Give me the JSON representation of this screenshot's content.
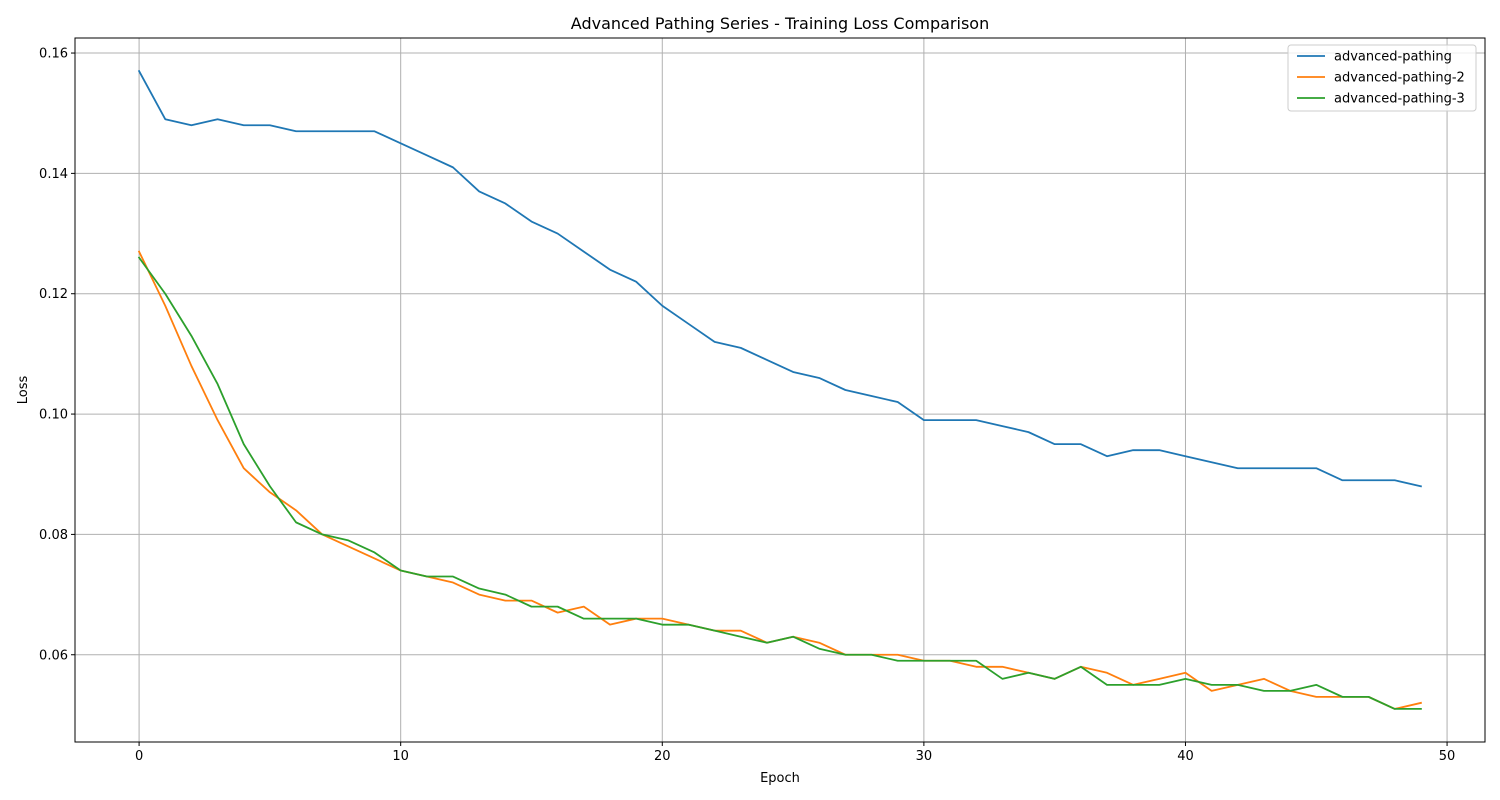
{
  "chart_data": {
    "type": "line",
    "title": "Advanced Pathing Series - Training Loss Comparison",
    "xlabel": "Epoch",
    "ylabel": "Loss",
    "xlim": [
      -2.45,
      51.45
    ],
    "ylim": [
      0.0455,
      0.1625
    ],
    "xticks": [
      0,
      10,
      20,
      30,
      40,
      50
    ],
    "xtick_labels": [
      "0",
      "10",
      "20",
      "30",
      "40",
      "50"
    ],
    "yticks": [
      0.06,
      0.08,
      0.1,
      0.12,
      0.14,
      0.16
    ],
    "ytick_labels": [
      "0.06",
      "0.08",
      "0.10",
      "0.12",
      "0.14",
      "0.16"
    ],
    "grid": true,
    "legend_position": "top-right",
    "x": [
      0,
      1,
      2,
      3,
      4,
      5,
      6,
      7,
      8,
      9,
      10,
      11,
      12,
      13,
      14,
      15,
      16,
      17,
      18,
      19,
      20,
      21,
      22,
      23,
      24,
      25,
      26,
      27,
      28,
      29,
      30,
      31,
      32,
      33,
      34,
      35,
      36,
      37,
      38,
      39,
      40,
      41,
      42,
      43,
      44,
      45,
      46,
      47,
      48,
      49
    ],
    "series": [
      {
        "name": "advanced-pathing",
        "color": "#1f77b4",
        "values": [
          0.157,
          0.149,
          0.148,
          0.149,
          0.148,
          0.148,
          0.147,
          0.147,
          0.147,
          0.147,
          0.145,
          0.143,
          0.141,
          0.137,
          0.135,
          0.132,
          0.13,
          0.127,
          0.124,
          0.122,
          0.118,
          0.115,
          0.112,
          0.111,
          0.109,
          0.107,
          0.106,
          0.104,
          0.103,
          0.102,
          0.099,
          0.099,
          0.099,
          0.098,
          0.097,
          0.095,
          0.095,
          0.093,
          0.094,
          0.094,
          0.093,
          0.092,
          0.091,
          0.091,
          0.091,
          0.091,
          0.089,
          0.089,
          0.089,
          0.088
        ]
      },
      {
        "name": "advanced-pathing-2",
        "color": "#ff7f0e",
        "values": [
          0.127,
          0.118,
          0.108,
          0.099,
          0.091,
          0.087,
          0.084,
          0.08,
          0.078,
          0.076,
          0.074,
          0.073,
          0.072,
          0.07,
          0.069,
          0.069,
          0.067,
          0.068,
          0.065,
          0.066,
          0.066,
          0.065,
          0.064,
          0.064,
          0.062,
          0.063,
          0.062,
          0.06,
          0.06,
          0.06,
          0.059,
          0.059,
          0.058,
          0.058,
          0.057,
          0.056,
          0.058,
          0.057,
          0.055,
          0.056,
          0.057,
          0.054,
          0.055,
          0.056,
          0.054,
          0.053,
          0.053,
          0.053,
          0.051,
          0.052
        ]
      },
      {
        "name": "advanced-pathing-3",
        "color": "#2ca02c",
        "values": [
          0.126,
          0.12,
          0.113,
          0.105,
          0.095,
          0.088,
          0.082,
          0.08,
          0.079,
          0.077,
          0.074,
          0.073,
          0.073,
          0.071,
          0.07,
          0.068,
          0.068,
          0.066,
          0.066,
          0.066,
          0.065,
          0.065,
          0.064,
          0.063,
          0.062,
          0.063,
          0.061,
          0.06,
          0.06,
          0.059,
          0.059,
          0.059,
          0.059,
          0.056,
          0.057,
          0.056,
          0.058,
          0.055,
          0.055,
          0.055,
          0.056,
          0.055,
          0.055,
          0.054,
          0.054,
          0.055,
          0.053,
          0.053,
          0.051,
          0.051
        ]
      }
    ]
  }
}
